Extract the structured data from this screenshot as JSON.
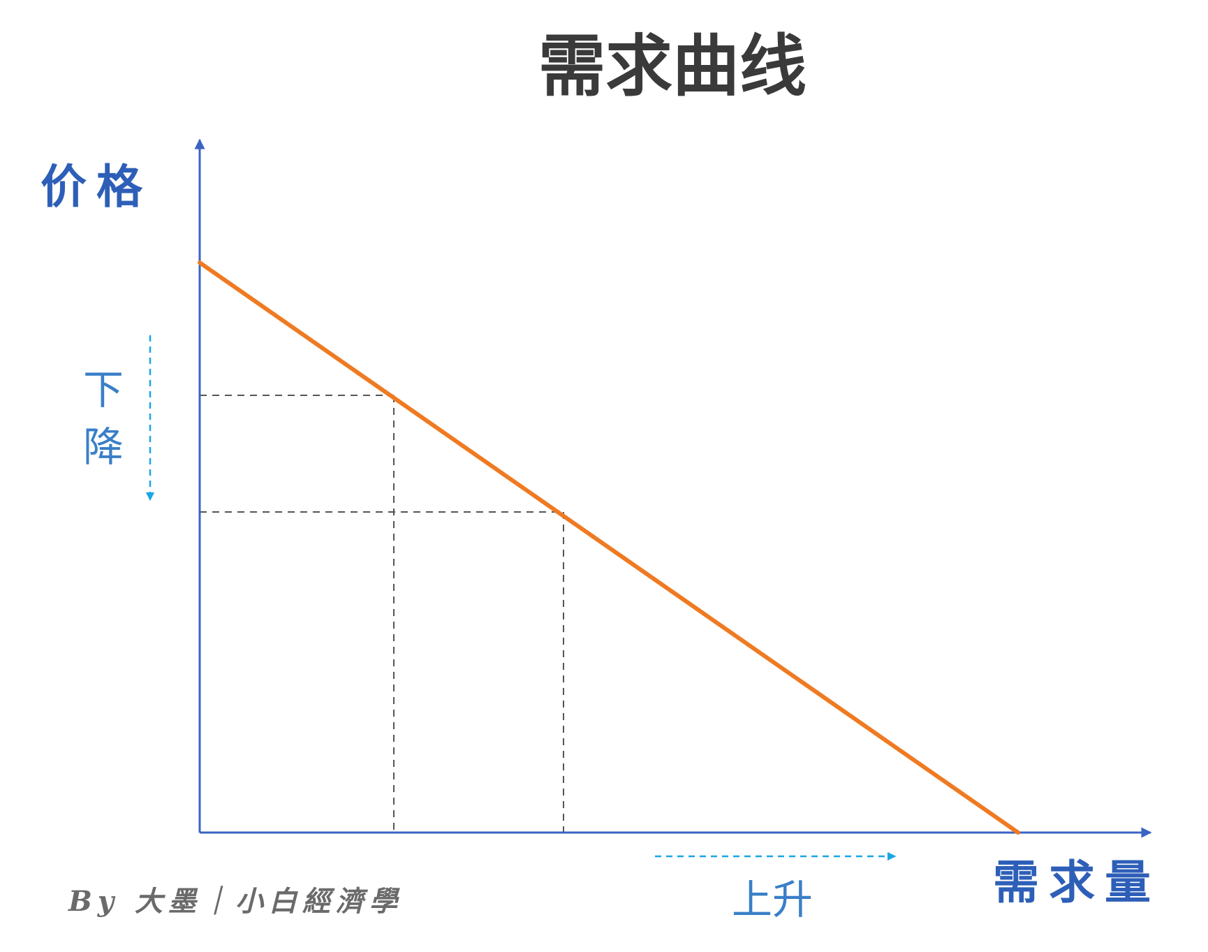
{
  "title": "需求曲线",
  "y_axis_label": "价格",
  "x_axis_label": "需求量",
  "price_trend": {
    "char_1": "下",
    "char_2": "降"
  },
  "quantity_trend": "上升",
  "credit": "By 大墨｜小白經濟學",
  "colors": {
    "axis": "#3a63c4",
    "demand_line": "#ef7a22",
    "guide_lines": "#555555",
    "trend_arrows": "#19a6e6",
    "axis_labels": "#2e5fb8",
    "title": "#3a3a3a"
  }
}
